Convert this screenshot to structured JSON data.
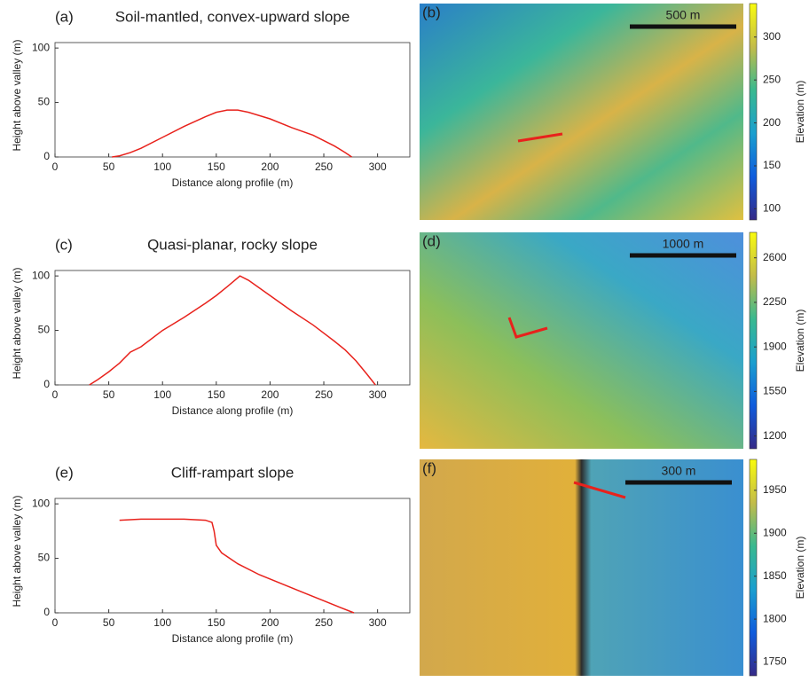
{
  "chart_data": [
    {
      "type": "line",
      "label": "(a)",
      "title": "Soil-mantled, convex-upward slope",
      "xlabel": "Distance along profile (m)",
      "ylabel": "Height above valley (m)",
      "xlim": [
        0,
        330
      ],
      "ylim": [
        0,
        105
      ],
      "xticks": [
        0,
        50,
        100,
        150,
        200,
        250,
        300
      ],
      "yticks": [
        0,
        50,
        100
      ],
      "color": "#e8221c",
      "x": [
        53,
        60,
        70,
        80,
        100,
        120,
        140,
        150,
        160,
        170,
        180,
        200,
        220,
        240,
        260,
        270,
        276
      ],
      "values": [
        0,
        1,
        4,
        8,
        18,
        28,
        37,
        41,
        43,
        43,
        41,
        35,
        27,
        20,
        10,
        4,
        0
      ]
    },
    {
      "type": "line",
      "label": "(c)",
      "title": "Quasi-planar, rocky slope",
      "xlabel": "Distance along profile (m)",
      "ylabel": "Height above valley (m)",
      "xlim": [
        0,
        330
      ],
      "ylim": [
        0,
        105
      ],
      "xticks": [
        0,
        50,
        100,
        150,
        200,
        250,
        300
      ],
      "yticks": [
        0,
        50,
        100
      ],
      "color": "#e8221c",
      "x": [
        32,
        40,
        50,
        60,
        70,
        80,
        100,
        120,
        140,
        150,
        160,
        172,
        180,
        200,
        220,
        240,
        260,
        270,
        280,
        290,
        298
      ],
      "values": [
        0,
        5,
        12,
        20,
        30,
        35,
        50,
        62,
        75,
        82,
        90,
        100,
        96,
        82,
        68,
        55,
        40,
        32,
        22,
        10,
        0
      ]
    },
    {
      "type": "line",
      "label": "(e)",
      "title": "Cliff-rampart slope",
      "xlabel": "Distance along profile (m)",
      "ylabel": "Height above valley (m)",
      "xlim": [
        0,
        330
      ],
      "ylim": [
        0,
        105
      ],
      "xticks": [
        0,
        50,
        100,
        150,
        200,
        250,
        300
      ],
      "yticks": [
        0,
        50,
        100
      ],
      "color": "#e8221c",
      "x": [
        60,
        80,
        100,
        120,
        140,
        146,
        148,
        150,
        155,
        170,
        190,
        210,
        230,
        250,
        265,
        278
      ],
      "values": [
        85,
        86,
        86,
        86,
        85,
        83,
        75,
        62,
        55,
        45,
        35,
        27,
        19,
        11,
        5,
        0
      ]
    }
  ],
  "maps": [
    {
      "label": "(b)",
      "scale_bar": "500 m",
      "colorbar_label": "Elevation (m)",
      "clim": [
        87,
        339
      ],
      "cticks": [
        100,
        150,
        200,
        250,
        300
      ]
    },
    {
      "label": "(d)",
      "scale_bar": "1000 m",
      "colorbar_label": "Elevation (m)",
      "clim": [
        1100,
        2800
      ],
      "cticks": [
        1200,
        1550,
        1900,
        2250,
        2600
      ]
    },
    {
      "label": "(f)",
      "scale_bar": "300 m",
      "colorbar_label": "Elevation (m)",
      "clim": [
        1734,
        1986
      ],
      "cticks": [
        1750,
        1800,
        1850,
        1900,
        1950
      ]
    }
  ]
}
